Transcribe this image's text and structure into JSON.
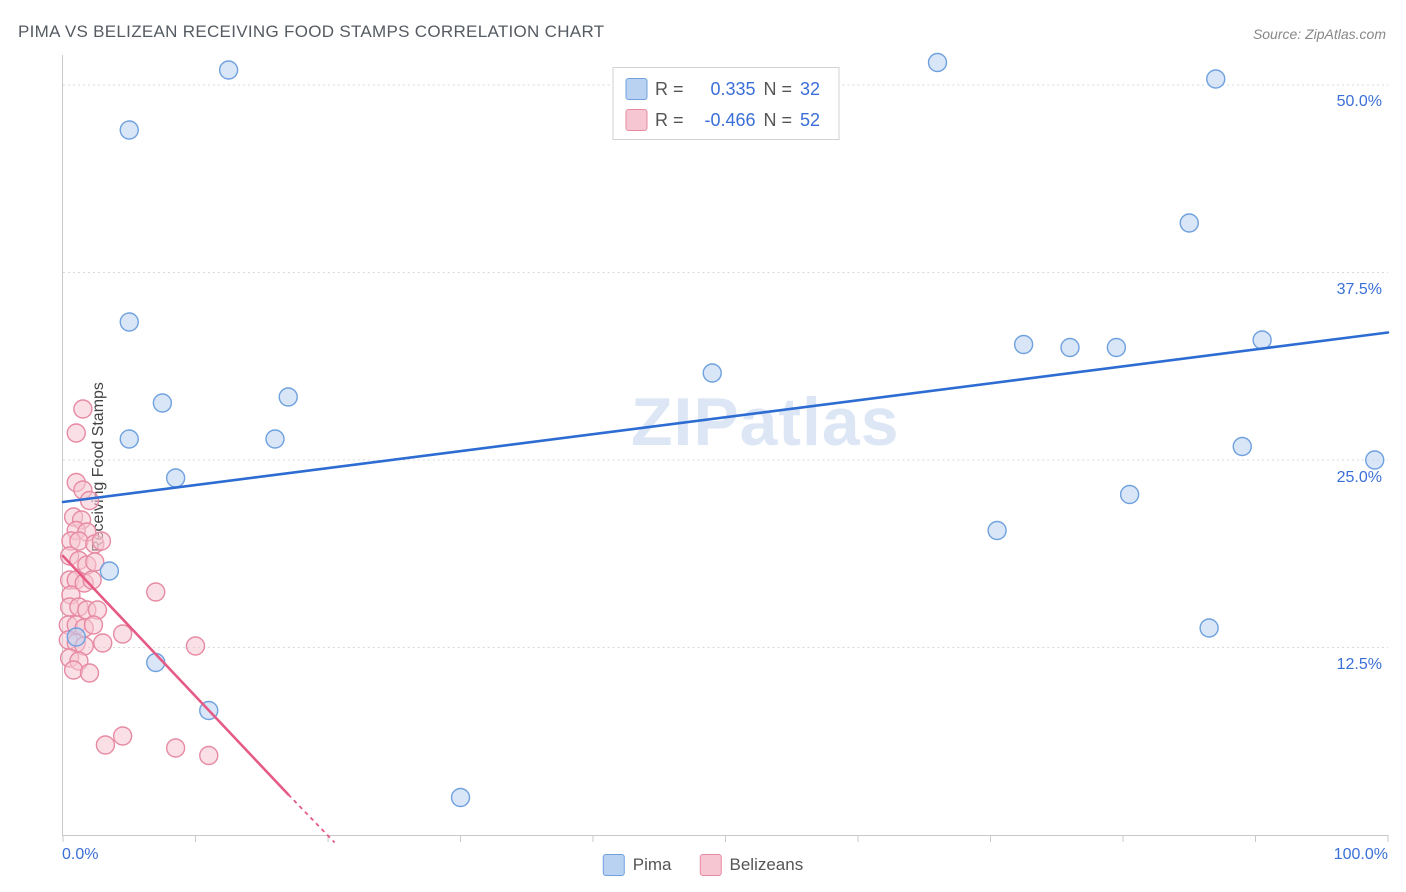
{
  "title": "PIMA VS BELIZEAN RECEIVING FOOD STAMPS CORRELATION CHART",
  "source": "Source: ZipAtlas.com",
  "watermark": "ZIPatlas",
  "chart": {
    "type": "scatter",
    "ylabel": "Receiving Food Stamps",
    "background_color": "#ffffff",
    "grid_color": "#d8d8d8",
    "axis_border_color": "#c9c9c9",
    "xlim": [
      0,
      100
    ],
    "ylim": [
      0,
      52
    ],
    "y_grid_values": [
      12.5,
      25.0,
      37.5,
      50.0
    ],
    "y_grid_labels": [
      "12.5%",
      "25.0%",
      "37.5%",
      "50.0%"
    ],
    "x_tick_values": [
      0,
      10,
      20,
      30,
      40,
      50,
      60,
      70,
      80,
      90,
      100
    ],
    "x_axis_min_label": "0.0%",
    "x_axis_max_label": "100.0%",
    "marker_radius": 9,
    "marker_opacity": 0.55,
    "trend_line_width": 2.6
  },
  "stats_legend": {
    "r_label": "R =",
    "n_label": "N =",
    "rows": [
      {
        "swatch_fill": "#b9d2f1",
        "swatch_border": "#6fa1df",
        "r": "0.335",
        "n": "32"
      },
      {
        "swatch_fill": "#f6c7d2",
        "swatch_border": "#e78aa3",
        "r": "-0.466",
        "n": "52"
      }
    ]
  },
  "bottom_legend": {
    "items": [
      {
        "fill": "#b9d2f1",
        "border": "#6fa1df",
        "label": "Pima"
      },
      {
        "fill": "#f6c7d2",
        "border": "#e78aa3",
        "label": "Belizeans"
      }
    ]
  },
  "series": [
    {
      "name": "Pima",
      "fill": "#b9d2f1",
      "stroke": "#6fa1df",
      "trend_color": "#2d6cd2",
      "trend": {
        "x1": 0,
        "y1": 22.2,
        "x2": 100,
        "y2": 33.5
      },
      "points": [
        [
          5.0,
          47.0
        ],
        [
          12.5,
          51.0
        ],
        [
          66.0,
          51.5
        ],
        [
          87.0,
          50.4
        ],
        [
          5.0,
          34.2
        ],
        [
          85.0,
          40.8
        ],
        [
          72.5,
          32.7
        ],
        [
          76.0,
          32.5
        ],
        [
          79.5,
          32.5
        ],
        [
          90.5,
          33.0
        ],
        [
          49.0,
          30.8
        ],
        [
          7.5,
          28.8
        ],
        [
          17.0,
          29.2
        ],
        [
          5.0,
          26.4
        ],
        [
          16.0,
          26.4
        ],
        [
          89.0,
          25.9
        ],
        [
          99.0,
          25.0
        ],
        [
          8.5,
          23.8
        ],
        [
          80.5,
          22.7
        ],
        [
          70.5,
          20.3
        ],
        [
          3.5,
          17.6
        ],
        [
          1.0,
          13.2
        ],
        [
          86.5,
          13.8
        ],
        [
          7.0,
          11.5
        ],
        [
          11.0,
          8.3
        ],
        [
          30.0,
          2.5
        ]
      ]
    },
    {
      "name": "Belizeans",
      "fill": "#f6c7d2",
      "stroke": "#e78aa3",
      "trend_color": "#e55b85",
      "trend": {
        "x1": 0,
        "y1": 18.6,
        "x2": 17,
        "y2": 2.7
      },
      "trend_dashed": {
        "x1": 17,
        "y1": 2.7,
        "x2": 20.5,
        "y2": -0.5
      },
      "points": [
        [
          1.5,
          28.4
        ],
        [
          1.0,
          26.8
        ],
        [
          1.0,
          23.5
        ],
        [
          1.5,
          23.0
        ],
        [
          2.0,
          22.3
        ],
        [
          0.8,
          21.2
        ],
        [
          1.4,
          21.0
        ],
        [
          1.0,
          20.3
        ],
        [
          1.8,
          20.2
        ],
        [
          0.6,
          19.6
        ],
        [
          1.2,
          19.6
        ],
        [
          2.4,
          19.4
        ],
        [
          2.9,
          19.6
        ],
        [
          0.5,
          18.6
        ],
        [
          1.2,
          18.3
        ],
        [
          1.8,
          18.0
        ],
        [
          2.4,
          18.2
        ],
        [
          0.5,
          17.0
        ],
        [
          1.0,
          17.0
        ],
        [
          1.6,
          16.8
        ],
        [
          2.2,
          17.0
        ],
        [
          0.6,
          16.0
        ],
        [
          7.0,
          16.2
        ],
        [
          0.5,
          15.2
        ],
        [
          1.2,
          15.2
        ],
        [
          1.8,
          15.0
        ],
        [
          2.6,
          15.0
        ],
        [
          0.4,
          14.0
        ],
        [
          1.0,
          14.0
        ],
        [
          1.6,
          13.8
        ],
        [
          2.3,
          14.0
        ],
        [
          0.4,
          13.0
        ],
        [
          1.0,
          12.8
        ],
        [
          1.6,
          12.6
        ],
        [
          4.5,
          13.4
        ],
        [
          3.0,
          12.8
        ],
        [
          10.0,
          12.6
        ],
        [
          0.5,
          11.8
        ],
        [
          1.2,
          11.6
        ],
        [
          0.8,
          11.0
        ],
        [
          2.0,
          10.8
        ],
        [
          3.2,
          6.0
        ],
        [
          4.5,
          6.6
        ],
        [
          8.5,
          5.8
        ],
        [
          11.0,
          5.3
        ]
      ]
    }
  ]
}
